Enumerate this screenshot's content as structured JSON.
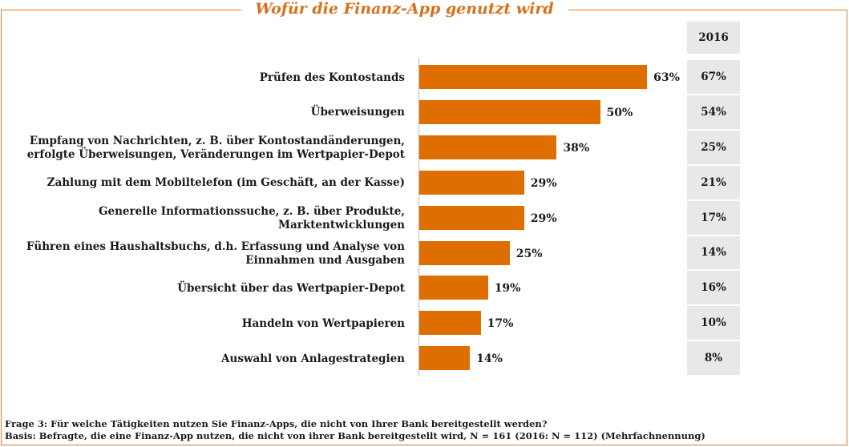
{
  "title": "Wofür die Finanz-App genutzt wird",
  "chart_data": {
    "type": "bar",
    "orientation": "horizontal",
    "title": "Wofür die Finanz-App genutzt wird",
    "categories": [
      [
        "Prüfen des Kontostands"
      ],
      [
        "Überweisungen"
      ],
      [
        "Empfang von Nachrichten, z. B. über Kontostandänderungen,",
        "erfolgte Überweisungen, Veränderungen im Wertpapier-Depot"
      ],
      [
        "Zahlung mit dem Mobiltelefon (im Geschäft, an der Kasse)"
      ],
      [
        "Generelle Informationssuche, z. B. über Produkte,",
        "Marktentwicklungen"
      ],
      [
        "Führen eines Haushaltsbuchs, d.h. Erfassung und Analyse von",
        "Einnahmen und Ausgaben"
      ],
      [
        "Übersicht über das Wertpapier-Depot"
      ],
      [
        "Handeln von Wertpapieren"
      ],
      [
        "Auswahl von Anlagestrategien"
      ]
    ],
    "values": [
      63,
      50,
      38,
      29,
      29,
      25,
      19,
      17,
      14
    ],
    "value_labels": [
      "63%",
      "50%",
      "38%",
      "29%",
      "29%",
      "25%",
      "19%",
      "17%",
      "14%"
    ],
    "comparison": {
      "header": "2016",
      "values": [
        67,
        54,
        25,
        21,
        17,
        14,
        16,
        10,
        8
      ],
      "labels": [
        "67%",
        "54%",
        "25%",
        "21%",
        "17%",
        "14%",
        "16%",
        "10%",
        "8%"
      ]
    },
    "xlim": [
      0,
      100
    ],
    "grid": false,
    "legend": "none",
    "bar_color": "#de6e00"
  },
  "footnotes": {
    "question": "Frage 3: Für welche Tätigkeiten nutzen Sie Finanz-Apps, die nicht von Ihrer Bank bereitgestellt werden?",
    "basis": "Basis: Befragte, die eine Finanz-App nutzen, die nicht von ihrer Bank bereitgestellt wird, N = 161 (2016: N = 112) (Mehrfachnennung)"
  },
  "colors": {
    "accent": "#e07b20",
    "bar": "#de6e00",
    "cell_bg": "#e8e8e8"
  }
}
